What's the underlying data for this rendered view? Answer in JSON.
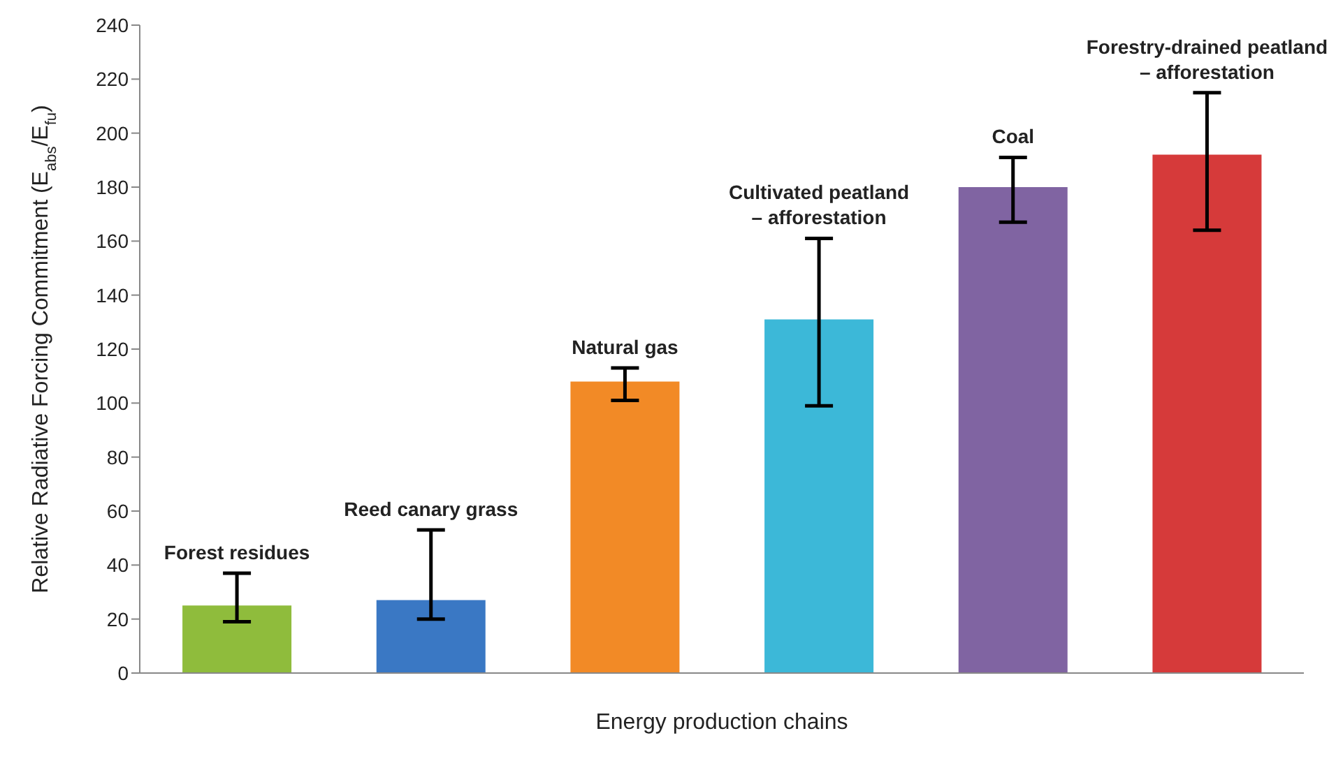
{
  "chart_data": {
    "type": "bar",
    "xlabel": "Energy production chains",
    "ylabel": "Relative Radiative Forcing Commitment  (E$_{abs}$/E$_{fu}$)",
    "categories": [
      "Forest residues",
      "Reed canary grass",
      "Natural gas",
      "Cultivated peatland – afforestation",
      "Coal",
      "Forestry-drained peatland – afforestation"
    ],
    "values": [
      25,
      27,
      108,
      131,
      180,
      192
    ],
    "colors": [
      "#8fbc3c",
      "#3a78c4",
      "#f28a26",
      "#3cb8d8",
      "#8064a2",
      "#d63a3a"
    ],
    "errors": [
      [
        19,
        37
      ],
      [
        20,
        53
      ],
      [
        101,
        113
      ],
      [
        99,
        161
      ],
      [
        167,
        191
      ],
      [
        164,
        215
      ]
    ],
    "ylim": [
      0,
      240
    ],
    "yticks": [
      0,
      20,
      40,
      60,
      80,
      100,
      120,
      140,
      160,
      180,
      200,
      220,
      240
    ],
    "grid": false,
    "legend": false
  }
}
